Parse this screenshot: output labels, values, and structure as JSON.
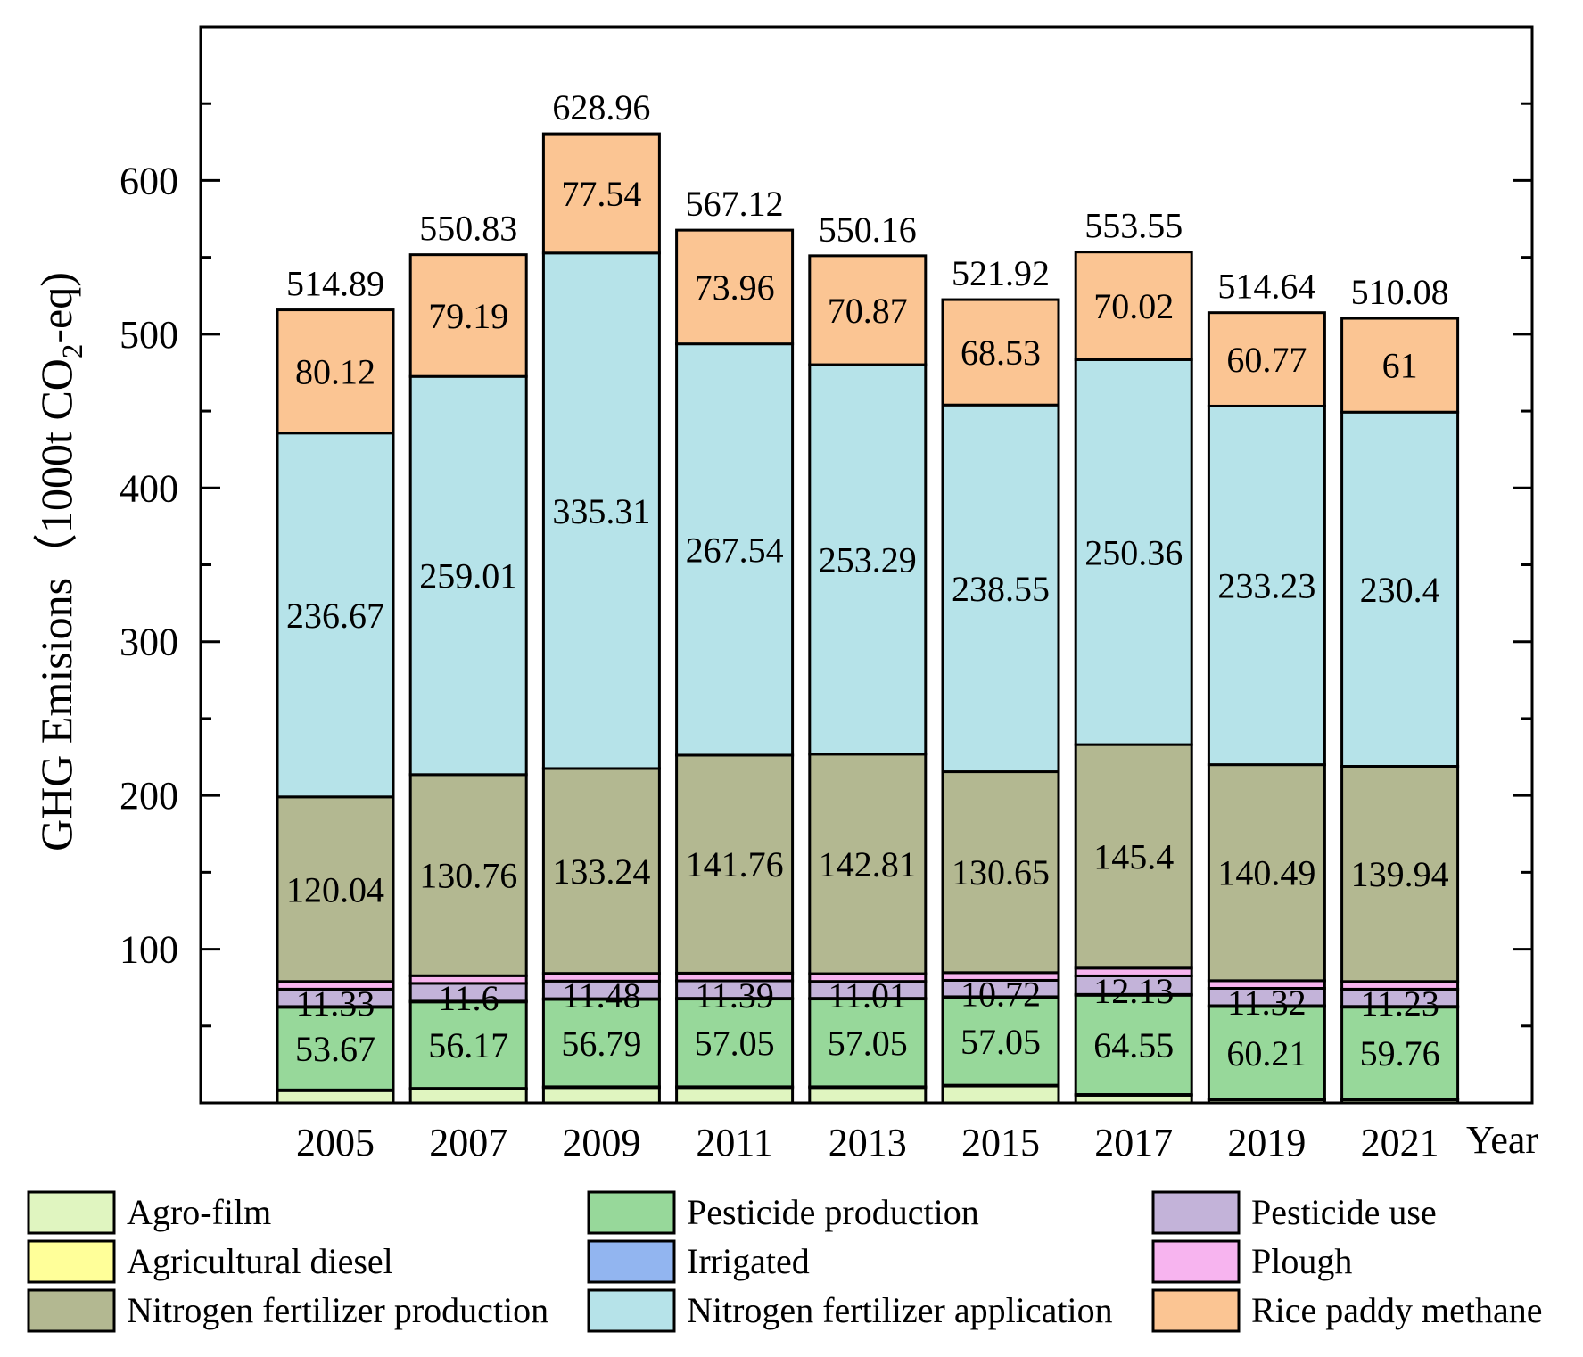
{
  "chart_data": {
    "type": "bar",
    "stacked": true,
    "categories": [
      "2005",
      "2007",
      "2009",
      "2011",
      "2013",
      "2015",
      "2017",
      "2019",
      "2021"
    ],
    "ylabel_main": "GHG Emisions（1000t CO",
    "ylabel_sub": "2",
    "ylabel_end": "-eq)",
    "xlabel": "Year",
    "ylim": [
      0,
      700
    ],
    "yticks": [
      100,
      200,
      300,
      400,
      500,
      600
    ],
    "totals": [
      "514.89",
      "550.83",
      "628.96",
      "567.12",
      "550.16",
      "521.92",
      "553.55",
      "514.64",
      "510.08"
    ],
    "series": [
      {
        "name": "Agro-film",
        "color": "#e0f5c0",
        "values": [
          8,
          9,
          10,
          10,
          10,
          11,
          5,
          2,
          2
        ]
      },
      {
        "name": "Agricultural diesel",
        "color": "#ffff99",
        "values": [
          0.5,
          0.5,
          0.5,
          0.5,
          0.5,
          0.5,
          0.5,
          0.5,
          0.5
        ]
      },
      {
        "name": "Pesticide production",
        "color": "#97d89a",
        "values": [
          53.67,
          56.17,
          56.79,
          57.05,
          57.05,
          57.05,
          64.55,
          60.21,
          59.76
        ],
        "labels": [
          "53.67",
          "56.17",
          "56.79",
          "57.05",
          "57.05",
          "57.05",
          "64.55",
          "60.21",
          "59.76"
        ]
      },
      {
        "name": "Irrigated",
        "color": "#92b5f0",
        "values": [
          0.5,
          0.5,
          0.5,
          0.5,
          0.5,
          0.5,
          0.5,
          0.5,
          0.5
        ]
      },
      {
        "name": "Pesticide use",
        "color": "#c3b3d9",
        "values": [
          11.33,
          11.6,
          11.48,
          11.39,
          11.01,
          10.72,
          12.13,
          11.32,
          11.23
        ],
        "labels": [
          "11.33",
          "11.6",
          "11.48",
          "11.39",
          "11.01",
          "10.72",
          "12.13",
          "11.32",
          "11.23"
        ]
      },
      {
        "name": "Plough",
        "color": "#f7b4ef",
        "values": [
          5,
          5,
          5,
          5,
          5,
          5,
          5,
          5,
          5
        ]
      },
      {
        "name": "Nitrogen fertilizer production",
        "color": "#b3b891",
        "values": [
          120.04,
          130.76,
          133.24,
          141.76,
          142.81,
          130.65,
          145.4,
          140.49,
          139.94
        ],
        "labels": [
          "120.04",
          "130.76",
          "133.24",
          "141.76",
          "142.81",
          "130.65",
          "145.4",
          "140.49",
          "139.94"
        ]
      },
      {
        "name": "Nitrogen fertilizer application",
        "color": "#b6e3e9",
        "values": [
          236.67,
          259.01,
          335.31,
          267.54,
          253.29,
          238.55,
          250.36,
          233.23,
          230.4
        ],
        "labels": [
          "236.67",
          "259.01",
          "335.31",
          "267.54",
          "253.29",
          "238.55",
          "250.36",
          "233.23",
          "230.4"
        ]
      },
      {
        "name": "Rice paddy methane",
        "color": "#fbc593",
        "values": [
          80.12,
          79.19,
          77.54,
          73.96,
          70.87,
          68.53,
          70.02,
          60.77,
          61
        ],
        "labels": [
          "80.12",
          "79.19",
          "77.54",
          "73.96",
          "70.87",
          "68.53",
          "70.02",
          "60.77",
          "61"
        ]
      }
    ],
    "legend": {
      "position": "bottom",
      "columns": 3,
      "order": [
        "Agro-film",
        "Pesticide production",
        "Pesticide use",
        "Agricultural diesel",
        "Irrigated",
        "Plough",
        "Nitrogen fertilizer production",
        "Nitrogen fertilizer application",
        "Rice paddy methane"
      ]
    }
  }
}
